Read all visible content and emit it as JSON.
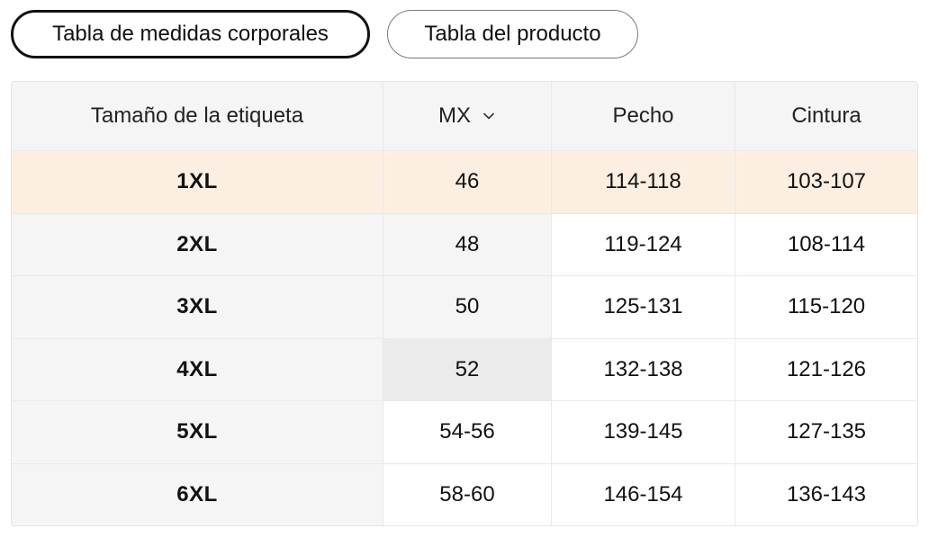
{
  "tabs": {
    "body_measurements": "Tabla de medidas corporales",
    "product_table": "Tabla del producto"
  },
  "table": {
    "headers": {
      "label_size": "Tamaño de la etiqueta",
      "region": "MX",
      "chest": "Pecho",
      "waist": "Cintura"
    },
    "rows": [
      {
        "label": "1XL",
        "mx": "46",
        "chest": "114-118",
        "waist": "103-107"
      },
      {
        "label": "2XL",
        "mx": "48",
        "chest": "119-124",
        "waist": "108-114"
      },
      {
        "label": "3XL",
        "mx": "50",
        "chest": "125-131",
        "waist": "115-120"
      },
      {
        "label": "4XL",
        "mx": "52",
        "chest": "132-138",
        "waist": "121-126"
      },
      {
        "label": "5XL",
        "mx": "54-56",
        "chest": "139-145",
        "waist": "127-135"
      },
      {
        "label": "6XL",
        "mx": "58-60",
        "chest": "146-154",
        "waist": "136-143"
      }
    ]
  },
  "colors": {
    "highlight_row": "#fcefe1",
    "header_bg": "#f5f5f5",
    "border": "#e9e9e9"
  },
  "icons": {
    "region_dropdown": "chevron-down-icon"
  }
}
